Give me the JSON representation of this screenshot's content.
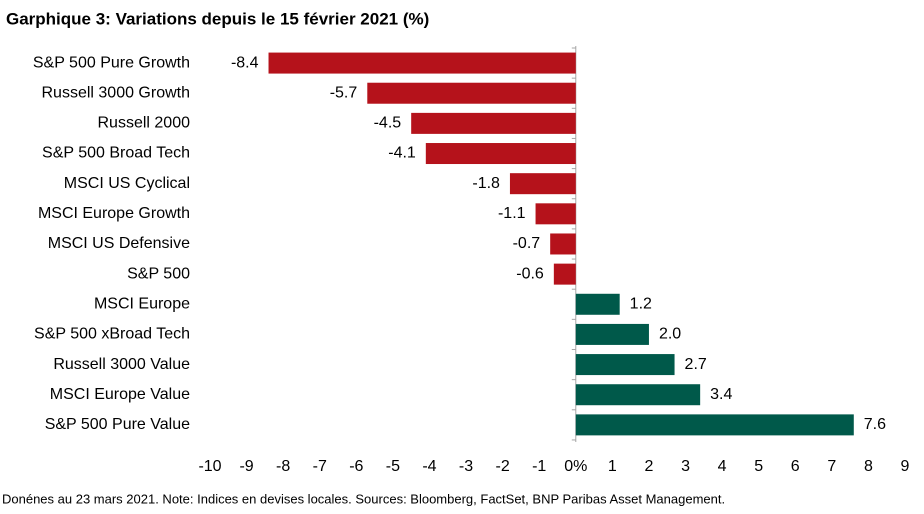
{
  "chart_data": {
    "type": "hbar",
    "title": "Garphique 3: Variations depuis le 15 février 2021 (%)",
    "footnote": "Donénes au 23 mars 2021. Note: Indices en devises locales. Sources: Bloomberg, FactSet, BNP Paribas Asset Management.",
    "categories": [
      "S&P 500 Pure Growth",
      "Russell 3000 Growth",
      "Russell 2000",
      "S&P 500 Broad Tech",
      "MSCI US Cyclical",
      "MSCI Europe Growth",
      "MSCI US Defensive",
      "S&P 500",
      "MSCI Europe",
      "S&P 500 xBroad Tech",
      "Russell 3000 Value",
      "MSCI Europe Value",
      "S&P 500 Pure Value"
    ],
    "values": [
      -8.4,
      -5.7,
      -4.5,
      -4.1,
      -1.8,
      -1.1,
      -0.7,
      -0.6,
      1.2,
      2.0,
      2.7,
      3.4,
      7.6
    ],
    "value_labels": [
      "-8.4",
      "-5.7",
      "-4.5",
      "-4.1",
      "-1.8",
      "-1.1",
      "-0.7",
      "-0.6",
      "1.2",
      "2.0",
      "2.7",
      "3.4",
      "7.6"
    ],
    "color_negative": "#b5121b",
    "color_positive": "#00594a",
    "xlim": [
      -10,
      9
    ],
    "xticks": [
      -10,
      -9,
      -8,
      -7,
      -6,
      -5,
      -4,
      -3,
      -2,
      -1,
      {
        "value": 0,
        "label": "0%"
      },
      1,
      2,
      3,
      4,
      5,
      6,
      7,
      8,
      9
    ]
  }
}
